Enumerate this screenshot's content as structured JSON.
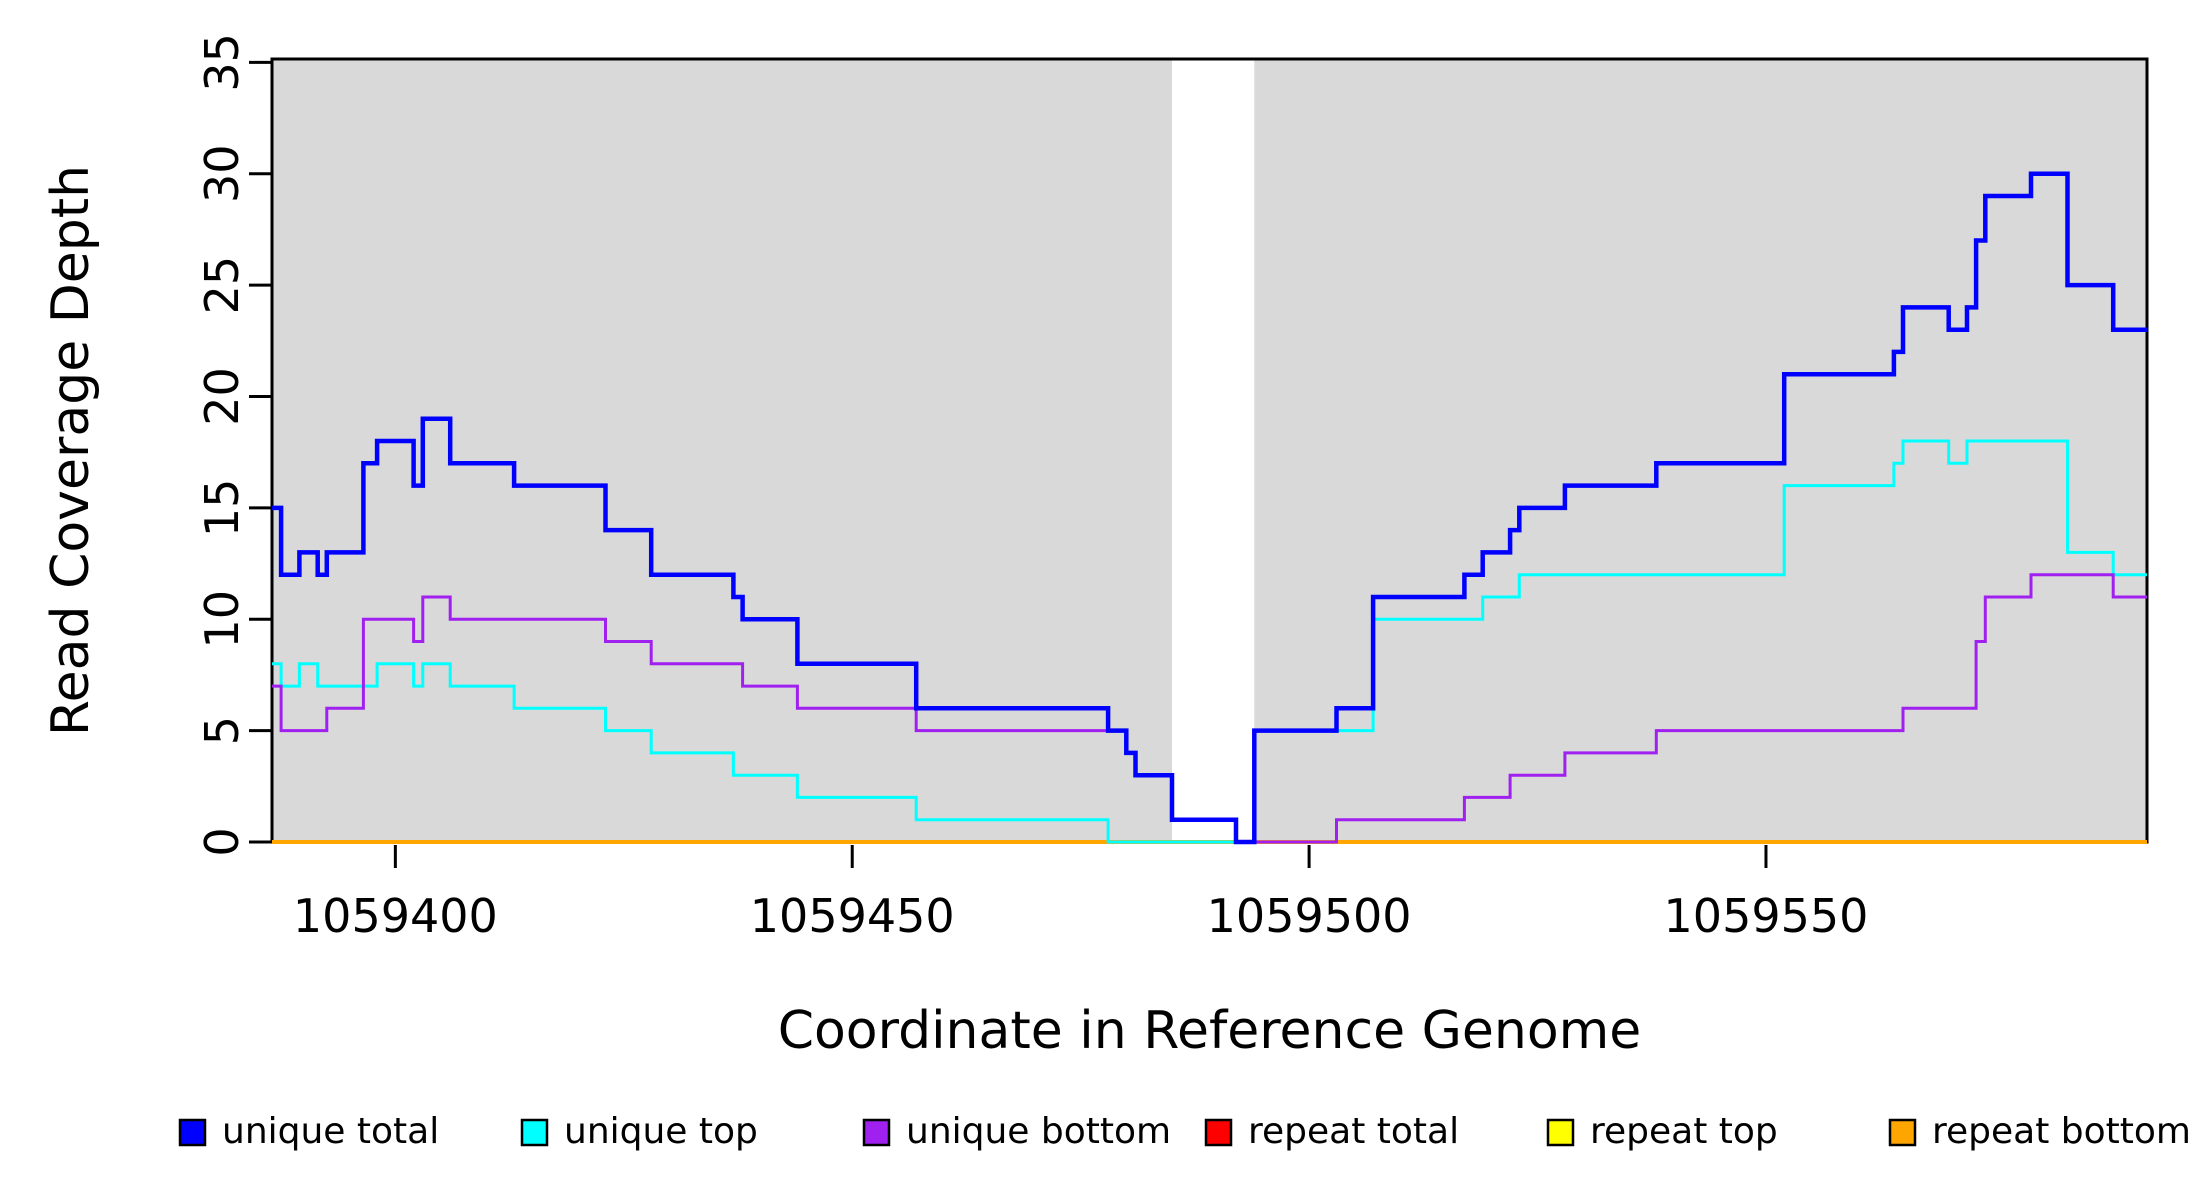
{
  "chart_data": {
    "type": "line",
    "variant": "step",
    "title": "",
    "xlabel": "Coordinate in Reference Genome",
    "ylabel": "Read Coverage Depth",
    "xlim": [
      1059386.5,
      1059591.7
    ],
    "ylim": [
      0,
      35.15
    ],
    "x_ticks": [
      1059400,
      1059450,
      1059500,
      1059550
    ],
    "y_ticks": [
      0,
      5,
      10,
      15,
      20,
      25,
      30,
      35
    ],
    "grid": false,
    "background_color": "#ffffff",
    "axis_color": "#000000",
    "shaded_region_color": "#d9d9d9",
    "shaded_regions": [
      {
        "name": "shaded-region-left",
        "x0": 1059386.5,
        "x1": 1059485.0
      },
      {
        "name": "shaded-region-right",
        "x0": 1059494.0,
        "x1": 1059591.7
      }
    ],
    "gap_region": {
      "x0": 1059485.0,
      "x1": 1059494.0
    },
    "series": [
      {
        "name": "repeat-total",
        "label": "repeat total",
        "color": "#FF0000",
        "width": 3,
        "x_end": 1059591.7,
        "steps": [
          [
            1059386.5,
            0
          ]
        ]
      },
      {
        "name": "repeat-top",
        "label": "repeat top",
        "color": "#FFFF00",
        "width": 3,
        "x_end": 1059591.7,
        "steps": [
          [
            1059386.5,
            0
          ]
        ]
      },
      {
        "name": "repeat-bottom",
        "label": "repeat bottom",
        "color": "#FFA500",
        "width": 4,
        "x_end": 1059591.7,
        "steps": [
          [
            1059386.5,
            0
          ]
        ]
      },
      {
        "name": "unique-top",
        "label": "unique top",
        "color": "#00FFFF",
        "width": 3,
        "x_end": 1059591.7,
        "steps": [
          [
            1059386.5,
            8
          ],
          [
            1059387.5,
            7
          ],
          [
            1059389.5,
            8
          ],
          [
            1059391.5,
            7
          ],
          [
            1059398,
            8
          ],
          [
            1059402,
            7
          ],
          [
            1059403,
            8
          ],
          [
            1059406,
            7
          ],
          [
            1059413,
            6
          ],
          [
            1059423,
            5
          ],
          [
            1059428,
            4
          ],
          [
            1059437,
            3
          ],
          [
            1059444,
            2
          ],
          [
            1059457,
            1
          ],
          [
            1059478,
            0
          ],
          [
            1059494,
            5
          ],
          [
            1059507,
            10
          ],
          [
            1059519,
            11
          ],
          [
            1059523,
            12
          ],
          [
            1059552,
            16
          ],
          [
            1059564,
            17
          ],
          [
            1059565,
            18
          ],
          [
            1059570,
            17
          ],
          [
            1059572,
            18
          ],
          [
            1059583,
            13
          ],
          [
            1059588,
            12
          ]
        ]
      },
      {
        "name": "unique-bottom",
        "label": "unique bottom",
        "color": "#A020F0",
        "width": 3,
        "x_end": 1059591.7,
        "steps": [
          [
            1059386.5,
            7
          ],
          [
            1059387.5,
            5
          ],
          [
            1059392.5,
            6
          ],
          [
            1059396.5,
            10
          ],
          [
            1059402,
            9
          ],
          [
            1059403,
            11
          ],
          [
            1059406,
            10
          ],
          [
            1059423,
            9
          ],
          [
            1059428,
            8
          ],
          [
            1059438,
            7
          ],
          [
            1059444,
            6
          ],
          [
            1059457,
            5
          ],
          [
            1059480,
            4
          ],
          [
            1059481,
            3
          ],
          [
            1059485,
            1
          ],
          [
            1059492,
            0
          ],
          [
            1059503,
            1
          ],
          [
            1059517,
            2
          ],
          [
            1059522,
            3
          ],
          [
            1059528,
            4
          ],
          [
            1059538,
            5
          ],
          [
            1059565,
            6
          ],
          [
            1059573,
            9
          ],
          [
            1059574,
            11
          ],
          [
            1059579,
            12
          ],
          [
            1059588,
            11
          ]
        ]
      },
      {
        "name": "unique-total",
        "label": "unique total",
        "color": "#0000FF",
        "width": 4.5,
        "x_end": 1059591.7,
        "steps": [
          [
            1059386.5,
            15
          ],
          [
            1059387.5,
            12
          ],
          [
            1059389.5,
            13
          ],
          [
            1059391.5,
            12
          ],
          [
            1059392.5,
            13
          ],
          [
            1059396.5,
            17
          ],
          [
            1059398,
            18
          ],
          [
            1059402,
            16
          ],
          [
            1059403,
            19
          ],
          [
            1059406,
            17
          ],
          [
            1059413,
            16
          ],
          [
            1059423,
            14
          ],
          [
            1059428,
            12
          ],
          [
            1059437,
            11
          ],
          [
            1059438,
            10
          ],
          [
            1059444,
            8
          ],
          [
            1059457,
            6
          ],
          [
            1059478,
            5
          ],
          [
            1059480,
            4
          ],
          [
            1059481,
            3
          ],
          [
            1059485,
            1
          ],
          [
            1059492,
            0
          ],
          [
            1059494,
            5
          ],
          [
            1059503,
            6
          ],
          [
            1059507,
            11
          ],
          [
            1059517,
            12
          ],
          [
            1059519,
            13
          ],
          [
            1059522,
            14
          ],
          [
            1059523,
            15
          ],
          [
            1059528,
            16
          ],
          [
            1059538,
            17
          ],
          [
            1059552,
            21
          ],
          [
            1059564,
            22
          ],
          [
            1059565,
            24
          ],
          [
            1059570,
            23
          ],
          [
            1059572,
            24
          ],
          [
            1059573,
            27
          ],
          [
            1059574,
            29
          ],
          [
            1059579,
            30
          ],
          [
            1059583,
            25
          ],
          [
            1059588,
            23
          ]
        ]
      }
    ],
    "legend": {
      "position": "bottom",
      "items": [
        {
          "label": "unique total",
          "color": "#0000FF"
        },
        {
          "label": "unique top",
          "color": "#00FFFF"
        },
        {
          "label": "unique bottom",
          "color": "#A020F0"
        },
        {
          "label": "repeat total",
          "color": "#FF0000"
        },
        {
          "label": "repeat top",
          "color": "#FFFF00"
        },
        {
          "label": "repeat bottom",
          "color": "#FFA500"
        }
      ]
    }
  }
}
